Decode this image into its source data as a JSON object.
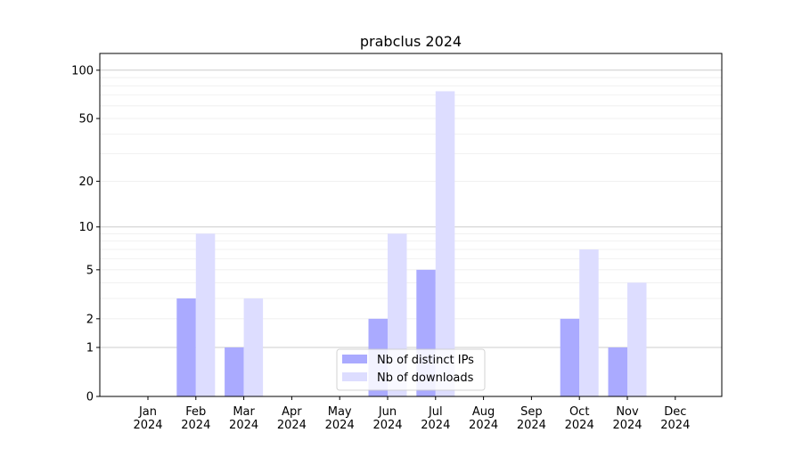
{
  "chart_data": {
    "type": "bar",
    "title": "prabclus 2024",
    "xlabel": "",
    "ylabel": "",
    "yscale": "symlog",
    "ylim": [
      0,
      120
    ],
    "yticks": [
      0,
      1,
      2,
      5,
      10,
      20,
      50,
      100
    ],
    "grid": true,
    "legend_placement": "bottom-center",
    "categories": [
      "Jan\n2024",
      "Feb\n2024",
      "Mar\n2024",
      "Apr\n2024",
      "May\n2024",
      "Jun\n2024",
      "Jul\n2024",
      "Aug\n2024",
      "Sep\n2024",
      "Oct\n2024",
      "Nov\n2024",
      "Dec\n2024"
    ],
    "series": [
      {
        "name": "Nb of distinct IPs",
        "color": "#aaaaff",
        "values": [
          0,
          3,
          1,
          0,
          0,
          2,
          5,
          0,
          0,
          2,
          1,
          0
        ]
      },
      {
        "name": "Nb of downloads",
        "color": "#ddddff",
        "values": [
          0,
          9,
          3,
          0,
          0,
          9,
          74,
          0,
          0,
          7,
          4,
          0
        ]
      }
    ]
  }
}
